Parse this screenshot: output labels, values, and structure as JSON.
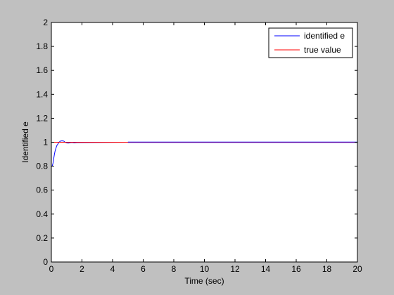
{
  "chart_data": {
    "type": "line",
    "title": "",
    "xlabel": "Time (sec)",
    "ylabel": "Identified e",
    "xlim": [
      0,
      20
    ],
    "ylim": [
      0,
      2
    ],
    "xticks": [
      0,
      2,
      4,
      6,
      8,
      10,
      12,
      14,
      16,
      18,
      20
    ],
    "yticks": [
      0,
      0.2,
      0.4,
      0.6,
      0.8,
      1,
      1.2,
      1.4,
      1.6,
      1.8,
      2
    ],
    "grid": false,
    "legend_position": "top-right",
    "series": [
      {
        "name": "identified e",
        "color": "#0000ff",
        "x": [
          0,
          0.05,
          0.1,
          0.15,
          0.2,
          0.25,
          0.3,
          0.35,
          0.4,
          0.5,
          0.6,
          0.7,
          0.8,
          0.9,
          1.0,
          1.1,
          1.2,
          1.3,
          1.4,
          1.5,
          1.6,
          1.7,
          5.0,
          6,
          8,
          10,
          12,
          14,
          16,
          18,
          20
        ],
        "y": [
          0.8,
          0.8,
          0.82,
          0.86,
          0.9,
          0.93,
          0.95,
          0.97,
          0.98,
          1.0,
          1.01,
          1.012,
          1.01,
          1.0,
          0.995,
          0.993,
          0.995,
          0.998,
          0.997,
          0.995,
          0.996,
          0.997,
          1.0,
          1.0,
          1.0,
          1.0,
          1.0,
          1.0,
          1.0,
          1.0,
          1.0
        ]
      },
      {
        "name": "true value",
        "color": "#ff0000",
        "x": [
          0,
          20
        ],
        "y": [
          1,
          1
        ]
      }
    ]
  }
}
